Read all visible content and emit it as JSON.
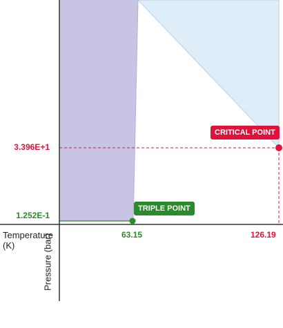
{
  "axes": {
    "x_label": "Temperature (K)",
    "y_label": "Pressure (bar)"
  },
  "points": [
    {
      "label": "CRITICAL POINT",
      "temperature": "126.19",
      "pressure": "3.396E+1"
    },
    {
      "label": "TRIPLE POINT",
      "temperature": "63.15",
      "pressure": "1.252E-1"
    }
  ]
}
